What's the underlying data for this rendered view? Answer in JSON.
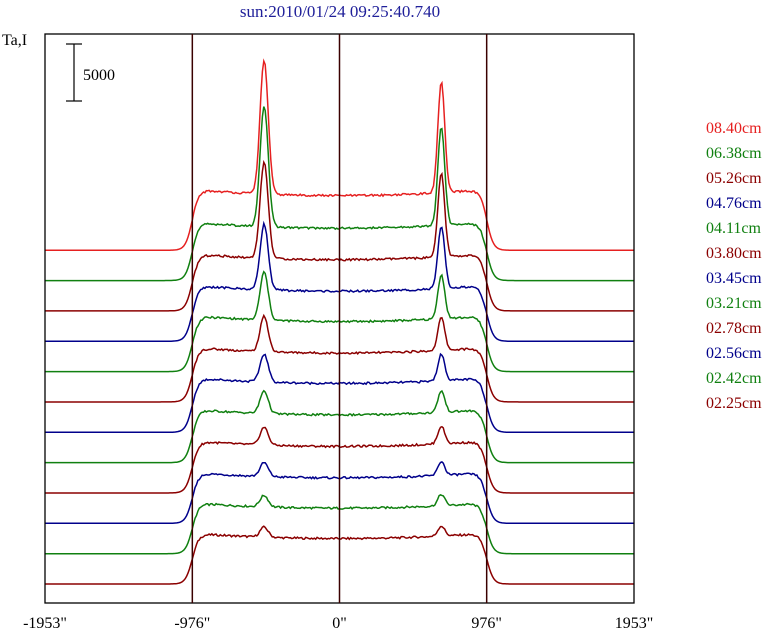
{
  "title": "sun:2010/01/24 09:25:40.740",
  "ylabel": "Ta,I",
  "scale_bar_label": "5000",
  "chart_data": {
    "type": "line",
    "title": "sun:2010/01/24 09:25:40.740",
    "ylabel": "Ta,I",
    "xlim": [
      -1953,
      1953
    ],
    "x_ticks": [
      {
        "value": -1953,
        "label": "-1953\""
      },
      {
        "value": -976,
        "label": "-976\""
      },
      {
        "value": 0,
        "label": "0\""
      },
      {
        "value": 976,
        "label": "976\""
      },
      {
        "value": 1953,
        "label": "1953\""
      }
    ],
    "vertical_lines": [
      -976,
      0,
      976
    ],
    "scale_bar": 5000,
    "grid": false,
    "legend_position": "right",
    "series": [
      {
        "name": "02.25cm",
        "color": "#8b0000",
        "baseline": 0,
        "disk": 4000,
        "limb_peak": 800,
        "limb_peak2": 800
      },
      {
        "name": "02.42cm",
        "color": "#108010",
        "baseline": 2400,
        "disk": 4000,
        "limb_peak": 900,
        "limb_peak2": 900
      },
      {
        "name": "02.56cm",
        "color": "#00008b",
        "baseline": 4800,
        "disk": 4000,
        "limb_peak": 1100,
        "limb_peak2": 1100
      },
      {
        "name": "02.78cm",
        "color": "#8b0000",
        "baseline": 7200,
        "disk": 4100,
        "limb_peak": 1400,
        "limb_peak2": 1400
      },
      {
        "name": "03.21cm",
        "color": "#108010",
        "baseline": 9600,
        "disk": 4200,
        "limb_peak": 1800,
        "limb_peak2": 1700
      },
      {
        "name": "03.45cm",
        "color": "#00008b",
        "baseline": 12000,
        "disk": 4300,
        "limb_peak": 2200,
        "limb_peak2": 2100
      },
      {
        "name": "03.80cm",
        "color": "#8b0000",
        "baseline": 14400,
        "disk": 4300,
        "limb_peak": 2800,
        "limb_peak2": 2600
      },
      {
        "name": "04.11cm",
        "color": "#108010",
        "baseline": 16800,
        "disk": 4400,
        "limb_peak": 3800,
        "limb_peak2": 3500
      },
      {
        "name": "04.76cm",
        "color": "#00008b",
        "baseline": 19200,
        "disk": 4400,
        "limb_peak": 5200,
        "limb_peak2": 4900
      },
      {
        "name": "05.26cm",
        "color": "#8b0000",
        "baseline": 21600,
        "disk": 4500,
        "limb_peak": 7600,
        "limb_peak2": 6600
      },
      {
        "name": "06.38cm",
        "color": "#108010",
        "baseline": 24000,
        "disk": 4600,
        "limb_peak": 9600,
        "limb_peak2": 7800
      },
      {
        "name": "08.40cm",
        "color": "#e62020",
        "baseline": 26400,
        "disk": 4800,
        "limb_peak": 10600,
        "limb_peak2": 8800
      }
    ],
    "ylim": [
      -1500,
      43500
    ]
  }
}
